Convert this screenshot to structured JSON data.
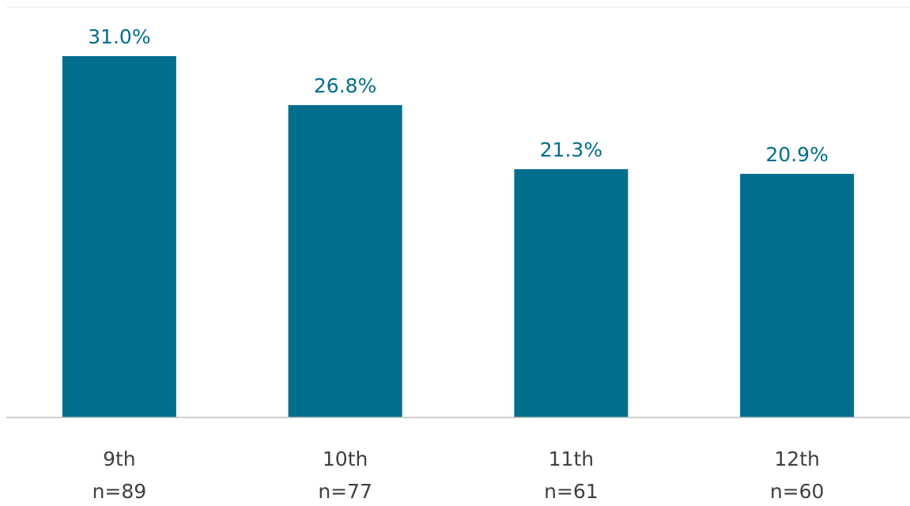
{
  "chart_data": {
    "type": "bar",
    "categories": [
      "9th",
      "10th",
      "11th",
      "12th"
    ],
    "sample_sizes": [
      "n=89",
      "n=77",
      "n=61",
      "n=60"
    ],
    "values": [
      31.0,
      26.8,
      21.3,
      20.9
    ],
    "data_labels": [
      "31.0%",
      "26.8%",
      "21.3%",
      "20.9%"
    ],
    "title": "",
    "xlabel": "",
    "ylabel": "",
    "ylim": [
      0,
      35
    ],
    "grid": false,
    "legend": "none",
    "colors": {
      "bar": "#006e8c",
      "data_label": "#006e8c",
      "tick_label": "#404040",
      "axis": "#bfbfbf",
      "top_rule": "#e6e6e6"
    }
  }
}
